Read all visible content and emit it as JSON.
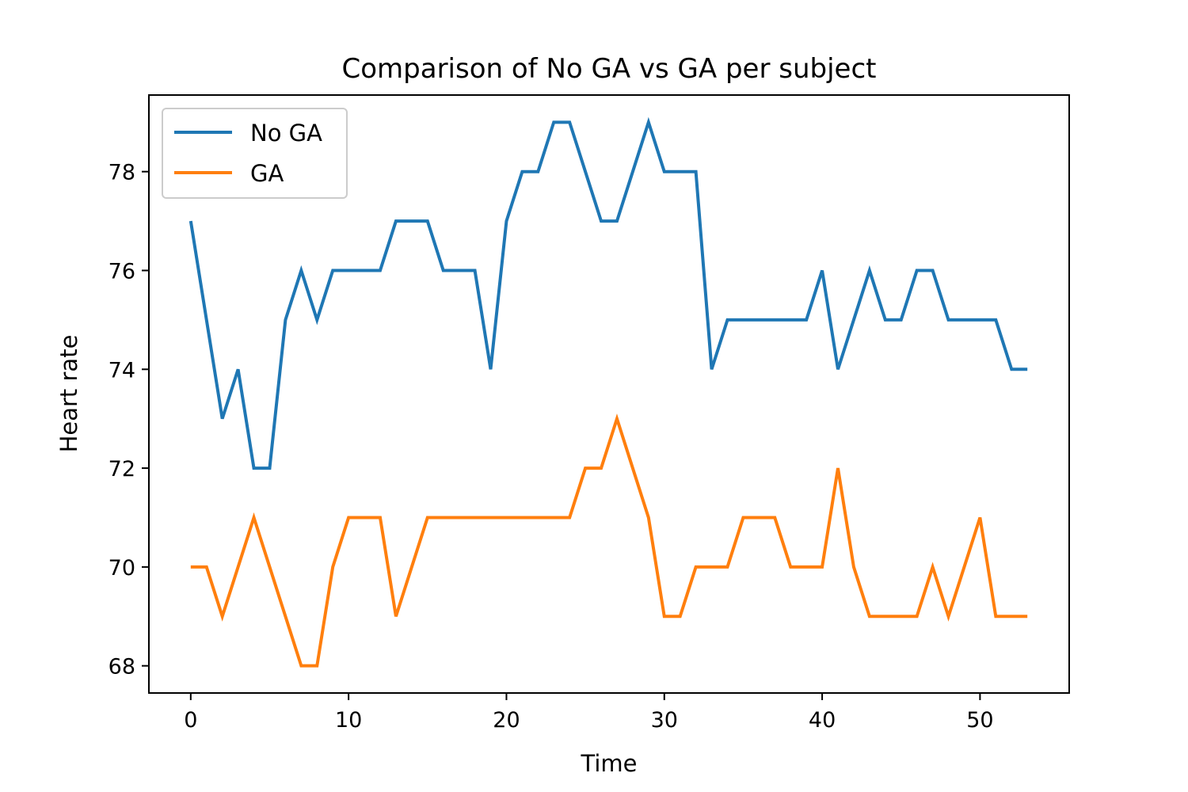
{
  "chart_data": {
    "type": "line",
    "title": "Comparison of No GA vs GA per subject",
    "xlabel": "Time",
    "ylabel": "Heart rate",
    "xlim": [
      -2.65,
      55.65
    ],
    "ylim": [
      67.45,
      79.55
    ],
    "xticks": [
      0,
      10,
      20,
      30,
      40,
      50
    ],
    "yticks": [
      68,
      70,
      72,
      74,
      76,
      78
    ],
    "grid": false,
    "legend_position": "upper left",
    "series": [
      {
        "name": "No GA",
        "color": "#1f77b4",
        "x": [
          0,
          1,
          2,
          3,
          4,
          5,
          6,
          7,
          8,
          9,
          10,
          11,
          12,
          13,
          14,
          15,
          16,
          17,
          18,
          19,
          20,
          21,
          22,
          23,
          24,
          25,
          26,
          27,
          28,
          29,
          30,
          31,
          32,
          33,
          34,
          35,
          36,
          37,
          38,
          39,
          40,
          41,
          42,
          43,
          44,
          45,
          46,
          47,
          48,
          49,
          50,
          51,
          52,
          53
        ],
        "y": [
          77,
          75,
          73,
          74,
          72,
          72,
          75,
          76,
          75,
          76,
          76,
          76,
          76,
          77,
          77,
          77,
          76,
          76,
          76,
          74,
          77,
          78,
          78,
          79,
          79,
          78,
          77,
          77,
          78,
          79,
          78,
          78,
          78,
          74,
          75,
          75,
          75,
          75,
          75,
          75,
          76,
          74,
          75,
          76,
          75,
          75,
          76,
          76,
          75,
          75,
          75,
          75,
          74,
          74
        ]
      },
      {
        "name": "GA",
        "color": "#ff7f0e",
        "x": [
          0,
          1,
          2,
          3,
          4,
          5,
          6,
          7,
          8,
          9,
          10,
          11,
          12,
          13,
          14,
          15,
          16,
          17,
          18,
          19,
          20,
          21,
          22,
          23,
          24,
          25,
          26,
          27,
          28,
          29,
          30,
          31,
          32,
          33,
          34,
          35,
          36,
          37,
          38,
          39,
          40,
          41,
          42,
          43,
          44,
          45,
          46,
          47,
          48,
          49,
          50,
          51,
          52,
          53
        ],
        "y": [
          70,
          70,
          69,
          70,
          71,
          70,
          69,
          68,
          68,
          70,
          71,
          71,
          71,
          69,
          70,
          71,
          71,
          71,
          71,
          71,
          71,
          71,
          71,
          71,
          71,
          72,
          72,
          73,
          72,
          71,
          69,
          69,
          70,
          70,
          70,
          71,
          71,
          71,
          70,
          70,
          70,
          72,
          70,
          69,
          69,
          69,
          69,
          70,
          69,
          70,
          71,
          69,
          69,
          69
        ]
      }
    ]
  }
}
